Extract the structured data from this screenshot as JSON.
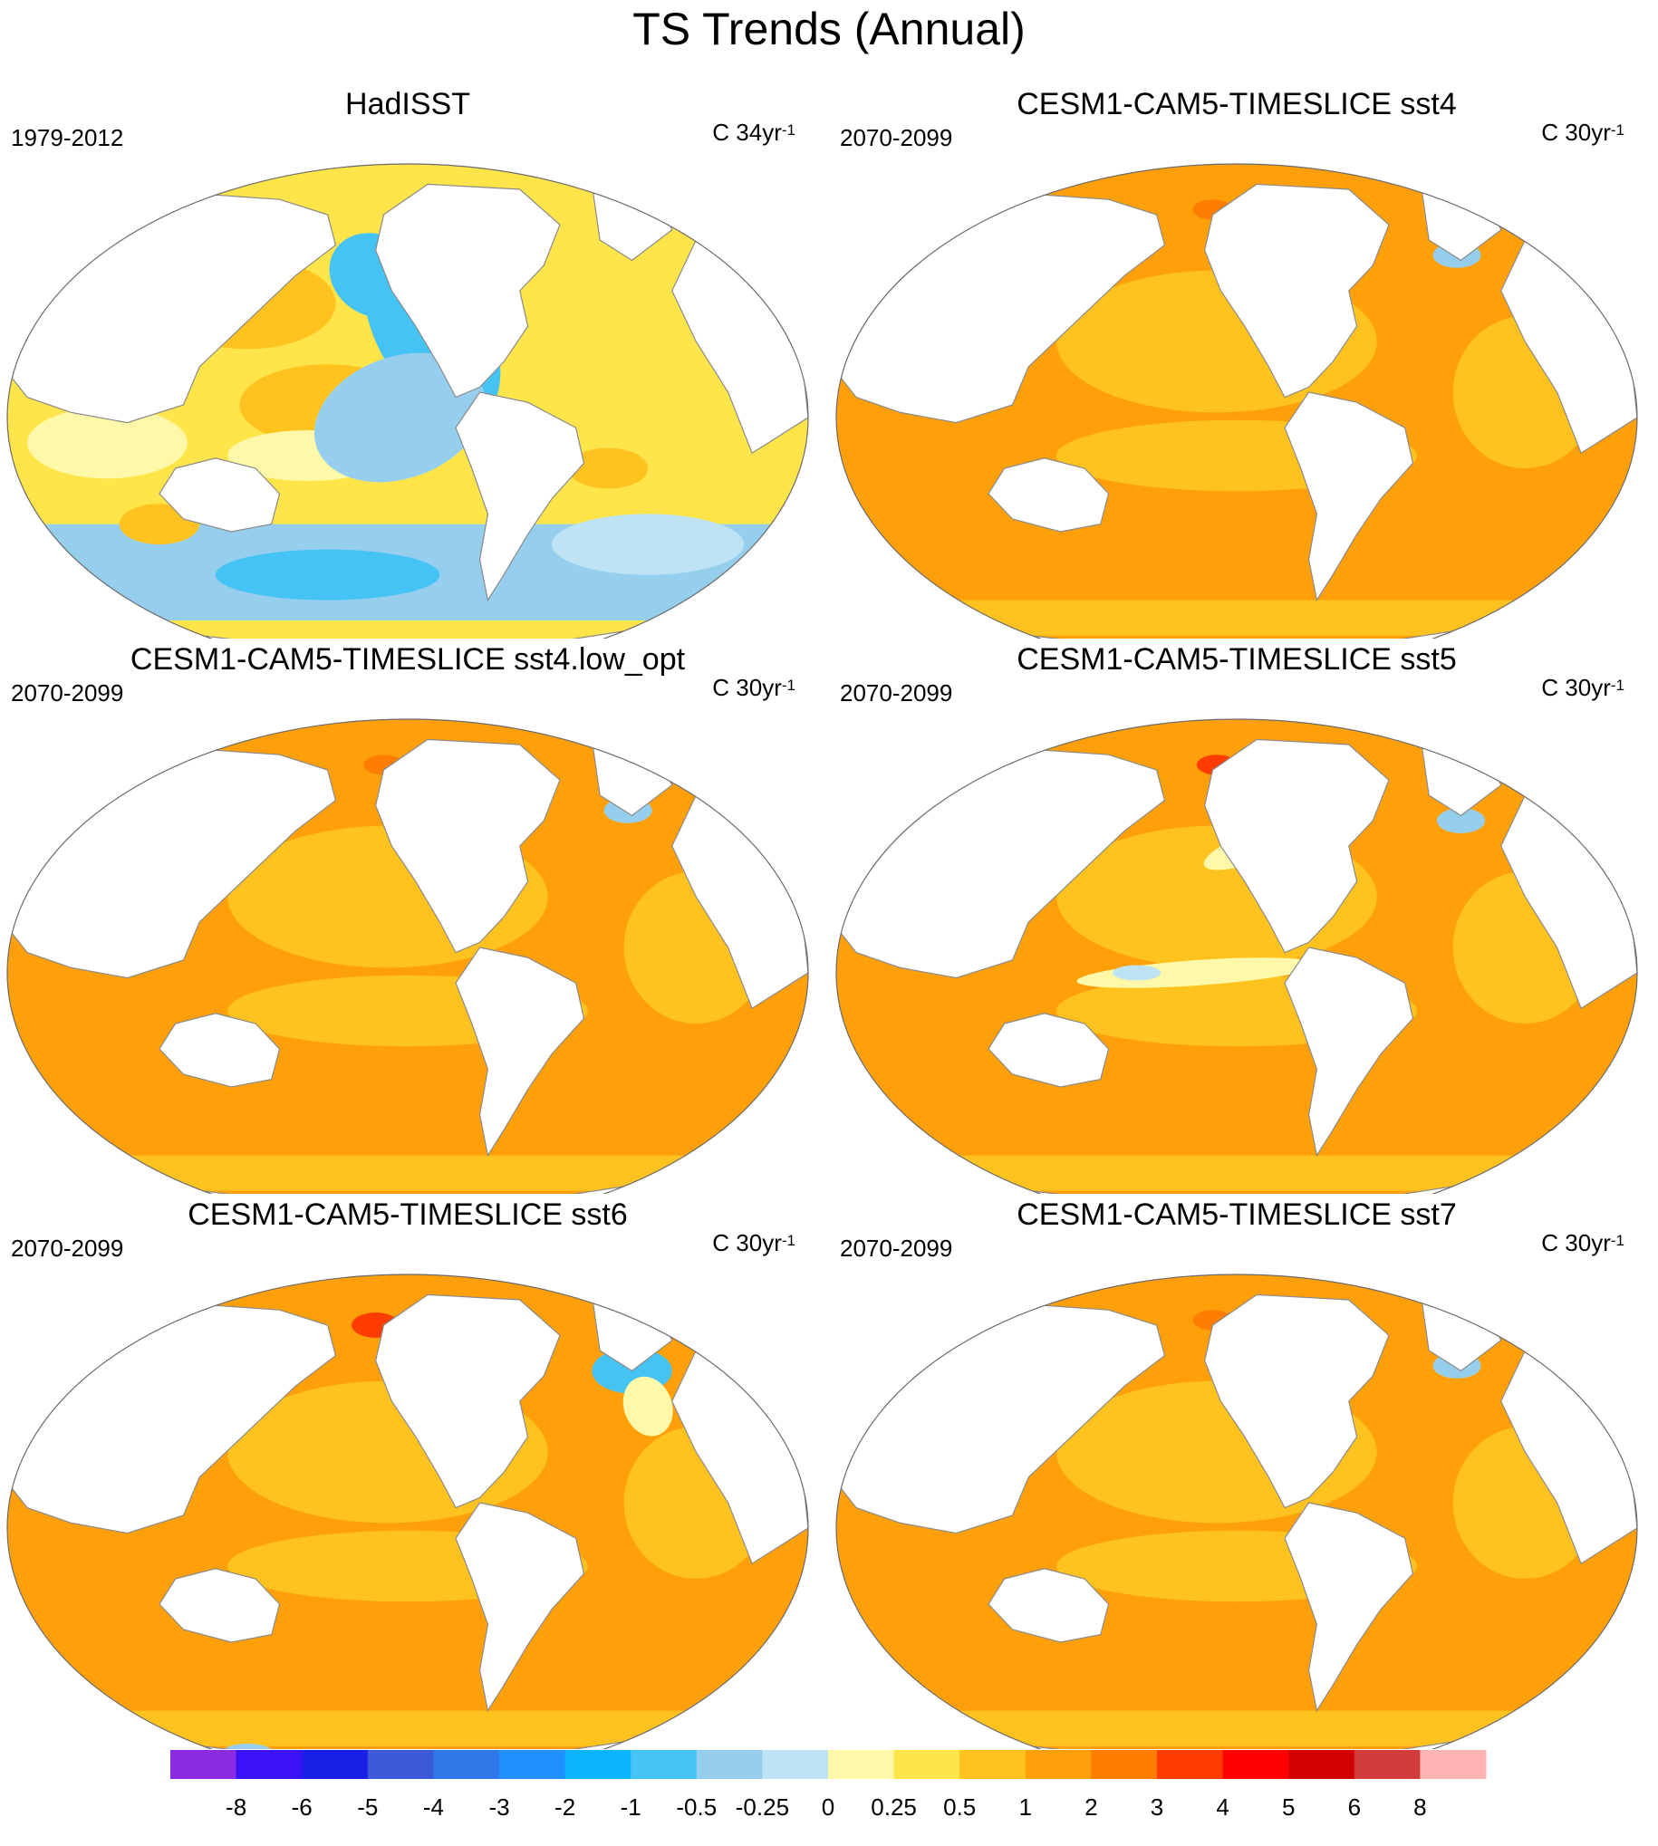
{
  "figure": {
    "title": "TS Trends (Annual)"
  },
  "panels": [
    {
      "title": "HadISST",
      "period": "1979-2012",
      "units_base": "C 34yr",
      "units_exp": "-1",
      "pattern": "obs"
    },
    {
      "title": "CESM1-CAM5-TIMESLICE sst4",
      "period": "2070-2099",
      "units_base": "C 30yr",
      "units_exp": "-1",
      "pattern": "sst4"
    },
    {
      "title": "CESM1-CAM5-TIMESLICE sst4.low_opt",
      "period": "2070-2099",
      "units_base": "C 30yr",
      "units_exp": "-1",
      "pattern": "low_opt"
    },
    {
      "title": "CESM1-CAM5-TIMESLICE sst5",
      "period": "2070-2099",
      "units_base": "C 30yr",
      "units_exp": "-1",
      "pattern": "sst5"
    },
    {
      "title": "CESM1-CAM5-TIMESLICE sst6",
      "period": "2070-2099",
      "units_base": "C 30yr",
      "units_exp": "-1",
      "pattern": "sst6"
    },
    {
      "title": "CESM1-CAM5-TIMESLICE sst7",
      "period": "2070-2099",
      "units_base": "C 30yr",
      "units_exp": "-1",
      "pattern": "sst7"
    }
  ],
  "colorbar": {
    "colors": [
      "#8a2be2",
      "#3a12f5",
      "#1a1fe8",
      "#3a5ad8",
      "#2e78e8",
      "#1e90ff",
      "#0ab4ff",
      "#46c3f5",
      "#96cfee",
      "#bee3f5",
      "#fff8a8",
      "#ffe54a",
      "#ffc21e",
      "#ffa00a",
      "#ff7d00",
      "#ff3c00",
      "#ff0000",
      "#d20000",
      "#d23c3c",
      "#ffb4b4"
    ],
    "labels": [
      "-8",
      "-6",
      "-5",
      "-4",
      "-3",
      "-2",
      "-1",
      "-0.5",
      "-0.25",
      "0",
      "0.25",
      "0.5",
      "1",
      "2",
      "3",
      "4",
      "5",
      "6",
      "8"
    ]
  }
}
